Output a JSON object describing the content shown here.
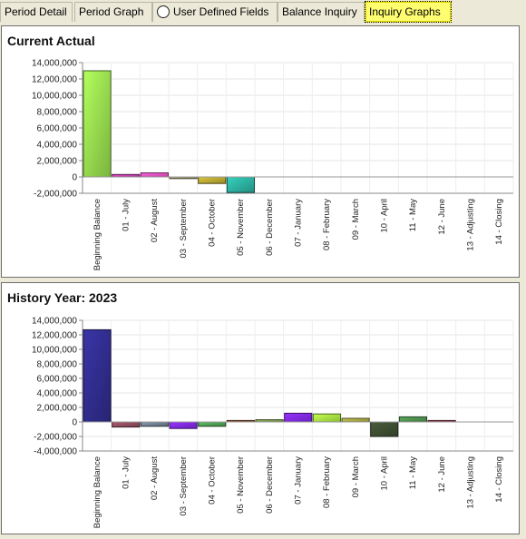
{
  "tabs": [
    {
      "label": "Period Detail"
    },
    {
      "label": "Period Graph"
    },
    {
      "label": "User Defined Fields"
    },
    {
      "label": "Balance Inquiry"
    },
    {
      "label": "Inquiry Graphs"
    }
  ],
  "colors": {
    "panel_border": "#6e6e6e",
    "active_tab": "#fffe70"
  },
  "chart_data": [
    {
      "type": "bar",
      "title": "Current Actual",
      "categories": [
        "Beginning Balance",
        "01 - July",
        "02 - August",
        "03 - September",
        "04 - October",
        "05 - November",
        "06 - December",
        "07 - January",
        "08 - February",
        "09 - March",
        "10 - April",
        "11 - May",
        "12 - June",
        "13 - Adjusting",
        "14 - Closing"
      ],
      "values": [
        13000000,
        300000,
        500000,
        -200000,
        -800000,
        -1900000,
        0,
        0,
        0,
        0,
        0,
        0,
        0,
        0,
        0
      ],
      "colors": [
        "#8fd24a",
        "#c03aa8",
        "#e04fb8",
        "#9a9068",
        "#b0a030",
        "#2aa898",
        "#999999",
        "#999999",
        "#999999",
        "#999999",
        "#999999",
        "#999999",
        "#999999",
        "#999999",
        "#999999"
      ],
      "yticks": [
        14000000,
        12000000,
        10000000,
        8000000,
        6000000,
        4000000,
        2000000,
        0,
        -2000000
      ],
      "ytick_labels": [
        "14,000,000",
        "12,000,000",
        "10,000,000",
        "8,000,000",
        "6,000,000",
        "4,000,000",
        "2,000,000",
        "0",
        "-2,000,000"
      ],
      "ylim": [
        -2000000,
        14000000
      ],
      "grid": true
    },
    {
      "type": "bar",
      "title": "History Year: 2023",
      "categories": [
        "Beginning Balance",
        "01 - July",
        "02 - August",
        "03 - September",
        "04 - October",
        "05 - November",
        "06 - December",
        "07 - January",
        "08 - February",
        "09 - March",
        "10 - April",
        "11 - May",
        "12 - June",
        "13 - Adjusting",
        "14 - Closing"
      ],
      "values": [
        12700000,
        -700000,
        -600000,
        -900000,
        -600000,
        200000,
        300000,
        1200000,
        1100000,
        500000,
        -2000000,
        700000,
        200000,
        0,
        0
      ],
      "colors": [
        "#2e2a86",
        "#8a4a5a",
        "#6a7a8a",
        "#7a28e0",
        "#4a9a50",
        "#8a5030",
        "#7a9a4a",
        "#7a28e0",
        "#a0e040",
        "#a0a040",
        "#3a4a30",
        "#4a8a4a",
        "#8a3a4a",
        "#999999",
        "#999999"
      ],
      "yticks": [
        14000000,
        12000000,
        10000000,
        8000000,
        6000000,
        4000000,
        2000000,
        0,
        -2000000,
        -4000000
      ],
      "ytick_labels": [
        "14,000,000",
        "12,000,000",
        "10,000,000",
        "8,000,000",
        "6,000,000",
        "4,000,000",
        "2,000,000",
        "0",
        "-2,000,000",
        "-4,000,000"
      ],
      "ylim": [
        -4000000,
        14000000
      ],
      "grid": true
    }
  ]
}
